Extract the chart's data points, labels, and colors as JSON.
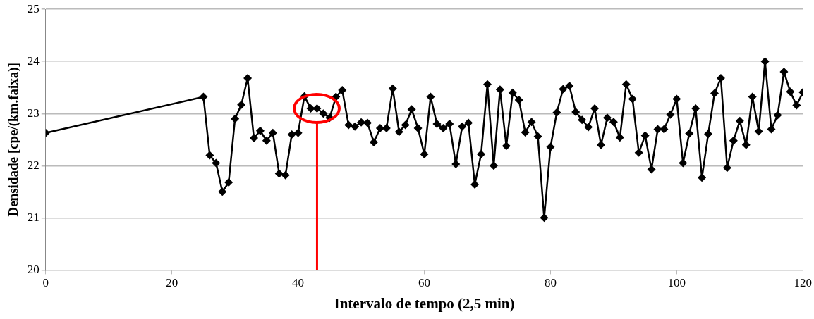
{
  "chart_data": {
    "type": "line",
    "xlabel": "Intervalo de tempo (2,5 min)",
    "ylabel": "Densidade [cpe/(km.faixa)]",
    "x": [
      0,
      25,
      26,
      27,
      28,
      29,
      30,
      31,
      32,
      33,
      34,
      35,
      36,
      37,
      38,
      39,
      40,
      41,
      42,
      43,
      44,
      45,
      46,
      47,
      48,
      49,
      50,
      51,
      52,
      53,
      54,
      55,
      56,
      57,
      58,
      59,
      60,
      61,
      62,
      63,
      64,
      65,
      66,
      67,
      68,
      69,
      70,
      71,
      72,
      73,
      74,
      75,
      76,
      77,
      78,
      79,
      80,
      81,
      82,
      83,
      84,
      85,
      86,
      87,
      88,
      89,
      90,
      91,
      92,
      93,
      94,
      95,
      96,
      97,
      98,
      99,
      100,
      101,
      102,
      103,
      104,
      105,
      106,
      107,
      108,
      109,
      110,
      111,
      112,
      113,
      114,
      115,
      116,
      117,
      118,
      119,
      120
    ],
    "series": [
      {
        "color": "#000000",
        "values": [
          22.63,
          23.32,
          22.2,
          22.05,
          21.5,
          21.68,
          22.9,
          23.17,
          23.68,
          22.53,
          22.67,
          22.48,
          22.63,
          21.85,
          21.82,
          22.6,
          22.63,
          23.33,
          23.1,
          23.1,
          23.0,
          22.92,
          23.32,
          23.45,
          22.78,
          22.75,
          22.83,
          22.82,
          22.45,
          22.72,
          22.72,
          23.48,
          22.65,
          22.78,
          23.08,
          22.72,
          22.22,
          23.32,
          22.8,
          22.72,
          22.8,
          22.03,
          22.75,
          22.82,
          21.64,
          22.22,
          23.56,
          22.0,
          23.46,
          22.38,
          23.4,
          23.26,
          22.64,
          22.84,
          22.56,
          21.0,
          22.36,
          23.02,
          23.47,
          23.53,
          23.03,
          22.88,
          22.74,
          23.1,
          22.4,
          22.92,
          22.84,
          22.54,
          23.56,
          23.28,
          22.25,
          22.58,
          21.93,
          22.7,
          22.7,
          22.98,
          23.28,
          22.05,
          22.62,
          23.1,
          21.77,
          22.61,
          23.39,
          23.68,
          21.96,
          22.48,
          22.86,
          22.4,
          23.32,
          22.66,
          24.0,
          22.7,
          22.97,
          23.8,
          23.42,
          23.16,
          23.41
        ]
      }
    ],
    "xlim": [
      0,
      120
    ],
    "xticks": [
      0,
      20,
      40,
      60,
      80,
      100,
      120
    ],
    "ylim": [
      20,
      25
    ],
    "yticks": [
      20,
      21,
      22,
      23,
      24,
      25
    ],
    "grid": "y",
    "marker": "diamond",
    "line_style": "solid",
    "ref_lines": [
      {
        "axis": "x",
        "value": 43,
        "color": "#ff0000",
        "line_style": "solid"
      }
    ]
  }
}
